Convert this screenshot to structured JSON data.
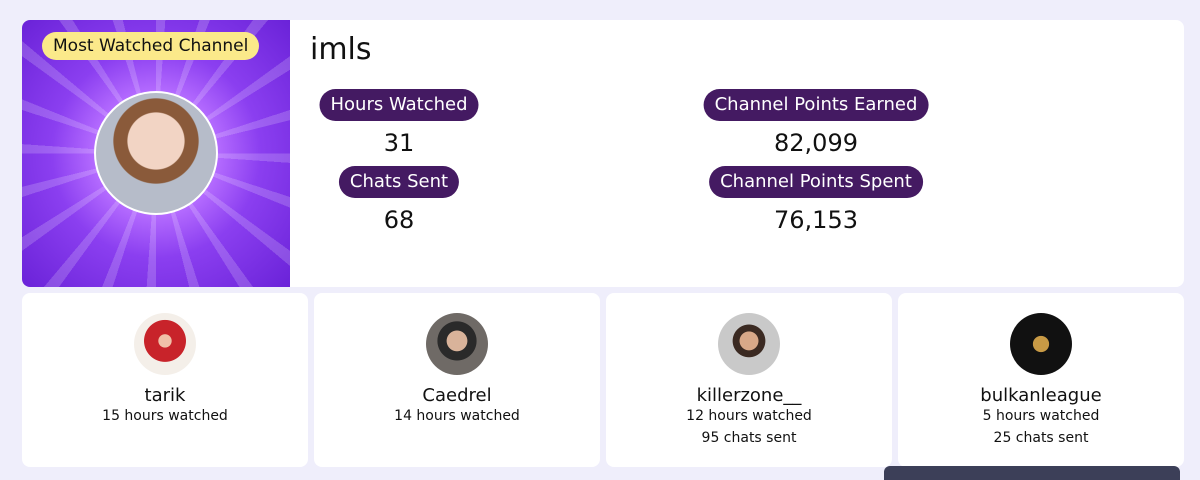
{
  "featured": {
    "badge": "Most Watched Channel",
    "name": "imls",
    "stats": [
      {
        "label": "Hours Watched",
        "value": "31"
      },
      {
        "label": "Chats Sent",
        "value": "68"
      },
      {
        "label": "Channel Points Earned",
        "value": "82,099"
      },
      {
        "label": "Channel Points Spent",
        "value": "76,153"
      }
    ]
  },
  "channels": [
    {
      "name": "tarik",
      "lines": [
        "15 hours watched"
      ]
    },
    {
      "name": "Caedrel",
      "lines": [
        "14 hours watched"
      ]
    },
    {
      "name": "killerzone__",
      "lines": [
        "12 hours watched",
        "95 chats sent"
      ]
    },
    {
      "name": "bulkanleague",
      "lines": [
        "5 hours watched",
        "25 chats sent"
      ]
    }
  ]
}
